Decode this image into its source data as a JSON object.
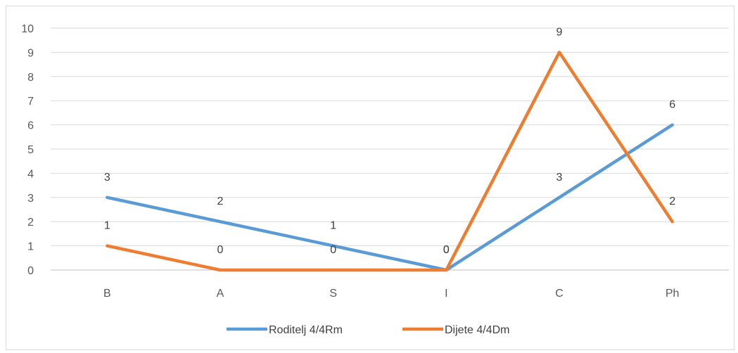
{
  "chart_data": {
    "type": "line",
    "categories": [
      "B",
      "A",
      "S",
      "I",
      "C",
      "Ph"
    ],
    "series": [
      {
        "name": "Roditelj 4/4Rm",
        "values": [
          3,
          2,
          1,
          0,
          3,
          6
        ],
        "color": "#5b9bd5"
      },
      {
        "name": "Dijete 4/4Dm",
        "values": [
          1,
          0,
          0,
          0,
          9,
          2
        ],
        "color": "#ed7d31"
      }
    ],
    "ylim": [
      0,
      10
    ],
    "yticks": [
      "0",
      "1",
      "2",
      "3",
      "4",
      "5",
      "6",
      "7",
      "8",
      "9",
      "10"
    ],
    "grid": true,
    "legend": "bottom",
    "data_labels": true,
    "title": "",
    "xlabel": "",
    "ylabel": ""
  }
}
